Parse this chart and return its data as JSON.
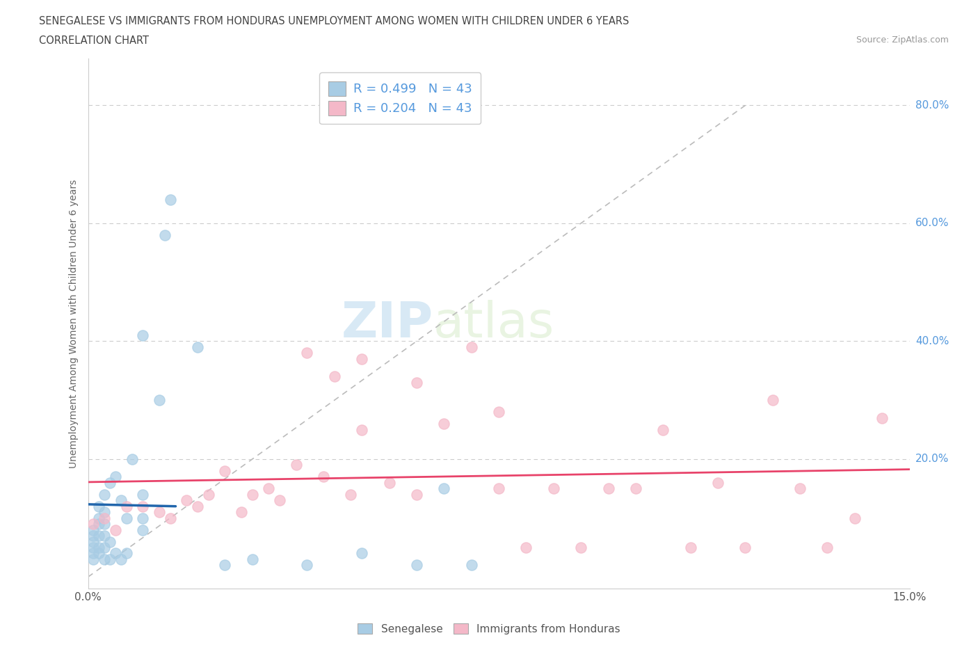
{
  "title_line1": "SENEGALESE VS IMMIGRANTS FROM HONDURAS UNEMPLOYMENT AMONG WOMEN WITH CHILDREN UNDER 6 YEARS",
  "title_line2": "CORRELATION CHART",
  "source": "Source: ZipAtlas.com",
  "ylabel": "Unemployment Among Women with Children Under 6 years",
  "xmin": 0.0,
  "xmax": 0.15,
  "ymin": -0.02,
  "ymax": 0.88,
  "blue_color": "#a8cce4",
  "pink_color": "#f4b8c8",
  "blue_line_color": "#2166ac",
  "pink_line_color": "#e8436a",
  "diag_color": "#bbbbbb",
  "grid_color": "#cccccc",
  "ytick_color": "#5599dd",
  "axis_color": "#cccccc",
  "watermark_color": "#d0e8f5",
  "label_color": "#666666",
  "source_color": "#999999",
  "title_color": "#444444",
  "blue_x": [
    0.001,
    0.001,
    0.001,
    0.001,
    0.001,
    0.001,
    0.002,
    0.002,
    0.002,
    0.002,
    0.002,
    0.002,
    0.003,
    0.003,
    0.003,
    0.003,
    0.003,
    0.003,
    0.004,
    0.004,
    0.004,
    0.005,
    0.005,
    0.006,
    0.006,
    0.007,
    0.007,
    0.008,
    0.01,
    0.01,
    0.01,
    0.01,
    0.013,
    0.014,
    0.015,
    0.02,
    0.025,
    0.03,
    0.04,
    0.05,
    0.06,
    0.065,
    0.07
  ],
  "blue_y": [
    0.03,
    0.04,
    0.05,
    0.06,
    0.07,
    0.08,
    0.04,
    0.05,
    0.07,
    0.09,
    0.1,
    0.12,
    0.03,
    0.05,
    0.07,
    0.09,
    0.11,
    0.14,
    0.03,
    0.06,
    0.16,
    0.04,
    0.17,
    0.03,
    0.13,
    0.04,
    0.1,
    0.2,
    0.08,
    0.1,
    0.14,
    0.41,
    0.3,
    0.58,
    0.64,
    0.39,
    0.02,
    0.03,
    0.02,
    0.04,
    0.02,
    0.15,
    0.02
  ],
  "pink_x": [
    0.001,
    0.003,
    0.005,
    0.007,
    0.01,
    0.013,
    0.015,
    0.018,
    0.02,
    0.022,
    0.025,
    0.028,
    0.03,
    0.033,
    0.035,
    0.038,
    0.04,
    0.043,
    0.045,
    0.048,
    0.05,
    0.055,
    0.06,
    0.065,
    0.07,
    0.075,
    0.08,
    0.085,
    0.09,
    0.095,
    0.1,
    0.105,
    0.11,
    0.115,
    0.12,
    0.125,
    0.13,
    0.135,
    0.14,
    0.145,
    0.05,
    0.06,
    0.075
  ],
  "pink_y": [
    0.09,
    0.1,
    0.08,
    0.12,
    0.12,
    0.11,
    0.1,
    0.13,
    0.12,
    0.14,
    0.18,
    0.11,
    0.14,
    0.15,
    0.13,
    0.19,
    0.38,
    0.17,
    0.34,
    0.14,
    0.37,
    0.16,
    0.14,
    0.26,
    0.39,
    0.15,
    0.05,
    0.15,
    0.05,
    0.15,
    0.15,
    0.25,
    0.05,
    0.16,
    0.05,
    0.3,
    0.15,
    0.05,
    0.1,
    0.27,
    0.25,
    0.33,
    0.28
  ]
}
